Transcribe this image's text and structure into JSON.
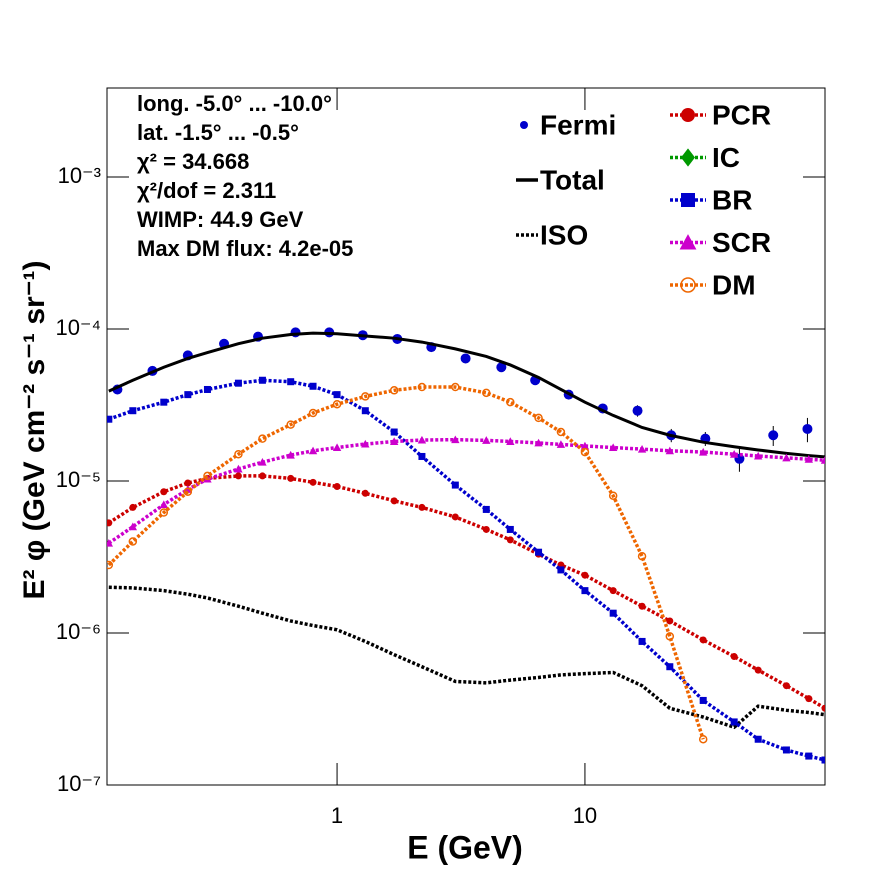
{
  "chart_data": {
    "type": "line",
    "x_label": "E (GeV)",
    "y_label": "E² φ (GeV cm⁻² s⁻¹ sr⁻¹)",
    "log_x": true,
    "log_y": true,
    "xlim": [
      0.118,
      93
    ],
    "ylim": [
      1e-07,
      0.00385
    ],
    "xticks": [
      1,
      10
    ],
    "yticks": [
      {
        "value": 1e-07,
        "label": "10⁻⁷"
      },
      {
        "value": 1e-06,
        "label": "10⁻⁶"
      },
      {
        "value": 1e-05,
        "label": "10⁻⁵"
      },
      {
        "value": 0.0001,
        "label": "10⁻⁴"
      },
      {
        "value": 0.001,
        "label": "10⁻³"
      }
    ],
    "annotations": [
      "long. -5.0° ... -10.0°",
      "lat. -1.5° ... -0.5°",
      "χ² = 34.668",
      "χ²/dof = 2.311",
      "WIMP: 44.9 GeV",
      "Max DM flux: 4.2e-05"
    ],
    "x": [
      0.12,
      0.15,
      0.2,
      0.25,
      0.3,
      0.4,
      0.5,
      0.65,
      0.8,
      1,
      1.3,
      1.7,
      2.2,
      3,
      4,
      5,
      6.5,
      8,
      10,
      13,
      17,
      22,
      30,
      40,
      50,
      65,
      80,
      93
    ],
    "series": [
      {
        "name": "Fermi",
        "color": "#0000cc",
        "marker": "circle",
        "line": "none",
        "x": [
          0.13,
          0.18,
          0.25,
          0.35,
          0.48,
          0.68,
          0.93,
          1.27,
          1.75,
          2.4,
          3.3,
          4.6,
          6.3,
          8.6,
          11.8,
          16.3,
          22.3,
          30.6,
          42,
          57.5,
          79
        ],
        "values": [
          4e-05,
          5.3e-05,
          6.7e-05,
          8e-05,
          8.9e-05,
          9.5e-05,
          9.5e-05,
          9.1e-05,
          8.6e-05,
          7.6e-05,
          6.4e-05,
          5.6e-05,
          4.6e-05,
          3.7e-05,
          3e-05,
          2.9e-05,
          2e-05,
          1.9e-05,
          1.4e-05,
          2e-05,
          2.2e-05
        ],
        "errors": [
          1e-06,
          1e-06,
          1e-06,
          1e-06,
          1e-06,
          1e-06,
          1e-06,
          1e-06,
          1e-06,
          1e-06,
          1e-06,
          1e-06,
          1e-06,
          1.5e-06,
          2e-06,
          2.5e-06,
          2e-06,
          2e-06,
          2.5e-06,
          3e-06,
          4e-06
        ]
      },
      {
        "name": "Total",
        "color": "#000000",
        "marker": "none",
        "line": "solid",
        "values": [
          3.9e-05,
          4.6e-05,
          5.6e-05,
          6.4e-05,
          7e-05,
          8e-05,
          8.7e-05,
          9.2e-05,
          9.4e-05,
          9.3e-05,
          9e-05,
          8.7e-05,
          8.2e-05,
          7.4e-05,
          6.6e-05,
          5.8e-05,
          4.8e-05,
          4e-05,
          3.3e-05,
          2.7e-05,
          2.25e-05,
          2e-05,
          1.8e-05,
          1.68e-05,
          1.6e-05,
          1.52e-05,
          1.47e-05,
          1.44e-05
        ]
      },
      {
        "name": "ISO",
        "color": "#000000",
        "marker": "none",
        "line": "dotted",
        "values": [
          2e-06,
          1.98e-06,
          1.9e-06,
          1.8e-06,
          1.7e-06,
          1.5e-06,
          1.35e-06,
          1.2e-06,
          1.12e-06,
          1.05e-06,
          8.8e-07,
          7.2e-07,
          6e-07,
          4.8e-07,
          4.7e-07,
          4.9e-07,
          5.1e-07,
          5.3e-07,
          5.4e-07,
          5.5e-07,
          4.5e-07,
          3.2e-07,
          2.8e-07,
          2.4e-07,
          3.3e-07,
          3.1e-07,
          3e-07,
          2.9e-07
        ]
      },
      {
        "name": "PCR",
        "color": "#cc0000",
        "marker": "circle",
        "line": "dotted",
        "values": [
          5.3e-06,
          6.7e-06,
          8.5e-06,
          9.7e-06,
          1.04e-05,
          1.08e-05,
          1.08e-05,
          1.04e-05,
          9.8e-06,
          9.2e-06,
          8.3e-06,
          7.4e-06,
          6.7e-06,
          5.8e-06,
          4.8e-06,
          4.1e-06,
          3.3e-06,
          2.8e-06,
          2.4e-06,
          1.9e-06,
          1.5e-06,
          1.2e-06,
          9e-07,
          7e-07,
          5.7e-07,
          4.5e-07,
          3.7e-07,
          3.2e-07
        ]
      },
      {
        "name": "IC",
        "color": "#009900",
        "marker": "diamond",
        "line": "dotted",
        "values": [
          null,
          null,
          null,
          null,
          null,
          null,
          null,
          null,
          null,
          null,
          null,
          null,
          null,
          null,
          null,
          null,
          null,
          null,
          null,
          null,
          null,
          null,
          null,
          null,
          null,
          null,
          null,
          null
        ]
      },
      {
        "name": "BR",
        "color": "#0000cc",
        "marker": "square",
        "line": "dotted",
        "values": [
          2.55e-05,
          2.9e-05,
          3.3e-05,
          3.7e-05,
          4e-05,
          4.4e-05,
          4.6e-05,
          4.5e-05,
          4.2e-05,
          3.7e-05,
          2.9e-05,
          2.1e-05,
          1.45e-05,
          9.4e-06,
          6.5e-06,
          4.8e-06,
          3.4e-06,
          2.6e-06,
          1.9e-06,
          1.35e-06,
          8.8e-07,
          6e-07,
          3.6e-07,
          2.6e-07,
          2e-07,
          1.7e-07,
          1.55e-07,
          1.46e-07
        ]
      },
      {
        "name": "SCR",
        "color": "#cc00cc",
        "marker": "triangle",
        "line": "dotted",
        "values": [
          3.9e-06,
          5e-06,
          7e-06,
          8.8e-06,
          1.03e-05,
          1.2e-05,
          1.33e-05,
          1.48e-05,
          1.58e-05,
          1.66e-05,
          1.75e-05,
          1.82e-05,
          1.86e-05,
          1.87e-05,
          1.85e-05,
          1.82e-05,
          1.78e-05,
          1.74e-05,
          1.7e-05,
          1.66e-05,
          1.62e-05,
          1.58e-05,
          1.55e-05,
          1.5e-05,
          1.46e-05,
          1.42e-05,
          1.39e-05,
          1.37e-05
        ]
      },
      {
        "name": "DM",
        "color": "#ee6600",
        "marker": "open-circle",
        "line": "dotted",
        "values": [
          2.8e-06,
          4e-06,
          6.2e-06,
          8.5e-06,
          1.08e-05,
          1.5e-05,
          1.9e-05,
          2.35e-05,
          2.8e-05,
          3.2e-05,
          3.6e-05,
          3.95e-05,
          4.15e-05,
          4.15e-05,
          3.8e-05,
          3.3e-05,
          2.6e-05,
          2.1e-05,
          1.55e-05,
          8e-06,
          3.2e-06,
          9.5e-07,
          2e-07,
          null,
          null,
          null,
          null,
          null
        ]
      }
    ]
  }
}
